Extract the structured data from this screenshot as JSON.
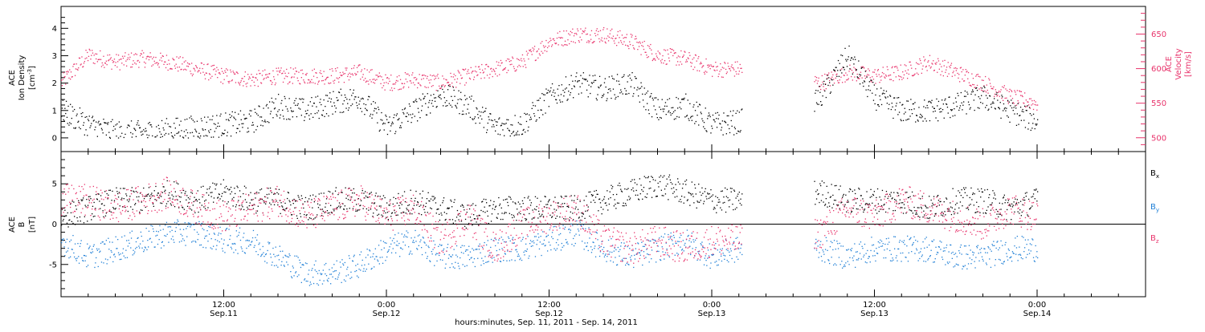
{
  "colors": {
    "density": "#000000",
    "velocity": "#e8336b",
    "bx": "#000000",
    "by": "#1f7fd6",
    "bz": "#e8336b",
    "frame": "#000000"
  },
  "x_axis": {
    "title": "hours:minutes, Sep. 11, 2011 - Sep. 14, 2011",
    "range_hours": [
      0,
      80
    ],
    "major_ticks": [
      {
        "hour": 12,
        "time": "12:00",
        "date": "Sep.11"
      },
      {
        "hour": 24,
        "time": "0:00",
        "date": "Sep.12"
      },
      {
        "hour": 36,
        "time": "12:00",
        "date": "Sep.12"
      },
      {
        "hour": 48,
        "time": "0:00",
        "date": "Sep.13"
      },
      {
        "hour": 60,
        "time": "12:00",
        "date": "Sep.13"
      },
      {
        "hour": 72,
        "time": "0:00",
        "date": "Sep.14"
      }
    ]
  },
  "top_panel": {
    "left_label": {
      "line1": "ACE",
      "line2": "Ion Density",
      "line3": "[cm",
      "sup": "-3",
      "close": "]"
    },
    "right_label": {
      "line1": "ACE",
      "line2": "Velocity",
      "line3": "[km/s]"
    },
    "left_ticks": [
      "0",
      "1",
      "2",
      "3",
      "4"
    ],
    "right_ticks": [
      "500",
      "550",
      "600",
      "650"
    ]
  },
  "bottom_panel": {
    "left_label": {
      "line1": "ACE",
      "line2": "B",
      "line3": "[nT]"
    },
    "left_ticks": [
      "-5",
      "0",
      "5"
    ],
    "legend": [
      {
        "base": "B",
        "sub": "x"
      },
      {
        "base": "B",
        "sub": "y"
      },
      {
        "base": "B",
        "sub": "z"
      }
    ]
  },
  "chart_data": [
    {
      "type": "scatter",
      "panel": "top",
      "ylabel": "ACE Ion Density [cm-3]",
      "y2label": "ACE Velocity [km/s]",
      "ylim": [
        -0.5,
        4.8
      ],
      "y2lim": [
        480,
        690
      ],
      "data_gap_hours": [
        50.2,
        55.5
      ],
      "series": [
        {
          "color": "#000000",
          "axis": "left",
          "x": [
            0,
            2,
            4,
            6,
            8,
            10,
            12,
            14,
            16,
            18,
            20,
            22,
            24,
            26,
            28,
            30,
            32,
            34,
            36,
            38,
            40,
            42,
            44,
            46,
            48,
            50,
            56,
            58,
            60,
            62,
            64,
            66,
            68,
            70,
            72
          ],
          "y": [
            1.0,
            0.5,
            0.2,
            0.2,
            0.3,
            0.4,
            0.5,
            0.6,
            1.2,
            1.0,
            1.3,
            1.5,
            0.4,
            1.0,
            1.6,
            1.2,
            0.4,
            0.5,
            1.5,
            2.0,
            1.8,
            2.0,
            1.0,
            1.2,
            0.5,
            0.6,
            1.5,
            3.0,
            1.5,
            1.0,
            1.0,
            1.2,
            1.5,
            1.0,
            0.6
          ]
        },
        {
          "color": "#e8336b",
          "axis": "right",
          "x": [
            0,
            2,
            4,
            6,
            8,
            10,
            12,
            14,
            16,
            18,
            20,
            22,
            24,
            26,
            28,
            30,
            32,
            34,
            36,
            38,
            40,
            42,
            44,
            46,
            48,
            50,
            56,
            58,
            60,
            62,
            64,
            66,
            68,
            70,
            72
          ],
          "y": [
            580,
            620,
            610,
            615,
            610,
            600,
            590,
            585,
            590,
            590,
            590,
            595,
            580,
            585,
            580,
            590,
            600,
            610,
            640,
            650,
            650,
            640,
            620,
            615,
            600,
            600,
            580,
            595,
            590,
            595,
            610,
            595,
            580,
            560,
            550
          ]
        }
      ]
    },
    {
      "type": "scatter",
      "panel": "bottom",
      "ylabel": "ACE B [nT]",
      "ylim": [
        -9,
        9
      ],
      "data_gap_hours": [
        50.2,
        55.5
      ],
      "series": [
        {
          "name": "Bx",
          "color": "#000000",
          "x": [
            0,
            2,
            4,
            6,
            8,
            10,
            12,
            14,
            16,
            18,
            20,
            22,
            24,
            26,
            28,
            30,
            32,
            34,
            36,
            38,
            40,
            42,
            44,
            46,
            48,
            50,
            56,
            58,
            60,
            62,
            64,
            66,
            68,
            70,
            72
          ],
          "y": [
            1,
            2,
            3,
            3,
            4,
            3,
            4,
            3,
            3,
            2,
            3,
            3,
            2,
            3,
            2,
            1,
            2,
            2,
            2,
            2,
            3,
            4,
            5,
            4,
            3,
            3,
            4,
            3,
            3,
            3,
            2,
            3,
            3,
            2,
            3
          ]
        },
        {
          "name": "By",
          "color": "#1f7fd6",
          "x": [
            0,
            2,
            4,
            6,
            8,
            10,
            12,
            14,
            16,
            18,
            20,
            22,
            24,
            26,
            28,
            30,
            32,
            34,
            36,
            38,
            40,
            42,
            44,
            46,
            48,
            50,
            56,
            58,
            60,
            62,
            64,
            66,
            68,
            70,
            72
          ],
          "y": [
            -2,
            -4,
            -3,
            -2,
            -1,
            -1,
            -2,
            -2,
            -4,
            -6,
            -6,
            -5,
            -3,
            -2,
            -4,
            -4,
            -3,
            -3,
            -2,
            -1,
            -3,
            -4,
            -3,
            -2,
            -4,
            -3,
            -3,
            -4,
            -3,
            -3,
            -3,
            -4,
            -4,
            -3,
            -3
          ]
        },
        {
          "name": "Bz",
          "color": "#e8336b",
          "x": [
            0,
            2,
            4,
            6,
            8,
            10,
            12,
            14,
            16,
            18,
            20,
            22,
            24,
            26,
            28,
            30,
            32,
            34,
            36,
            38,
            40,
            42,
            44,
            46,
            48,
            50,
            56,
            58,
            60,
            62,
            64,
            66,
            68,
            70,
            72
          ],
          "y": [
            3,
            3,
            2,
            3,
            4,
            2,
            1,
            2,
            3,
            1,
            2,
            3,
            1,
            2,
            -2,
            1,
            -3,
            0,
            1,
            2,
            -2,
            -3,
            -2,
            -3,
            -2,
            -2,
            -1,
            2,
            1,
            3,
            2,
            1,
            0,
            2,
            1
          ]
        }
      ]
    }
  ]
}
